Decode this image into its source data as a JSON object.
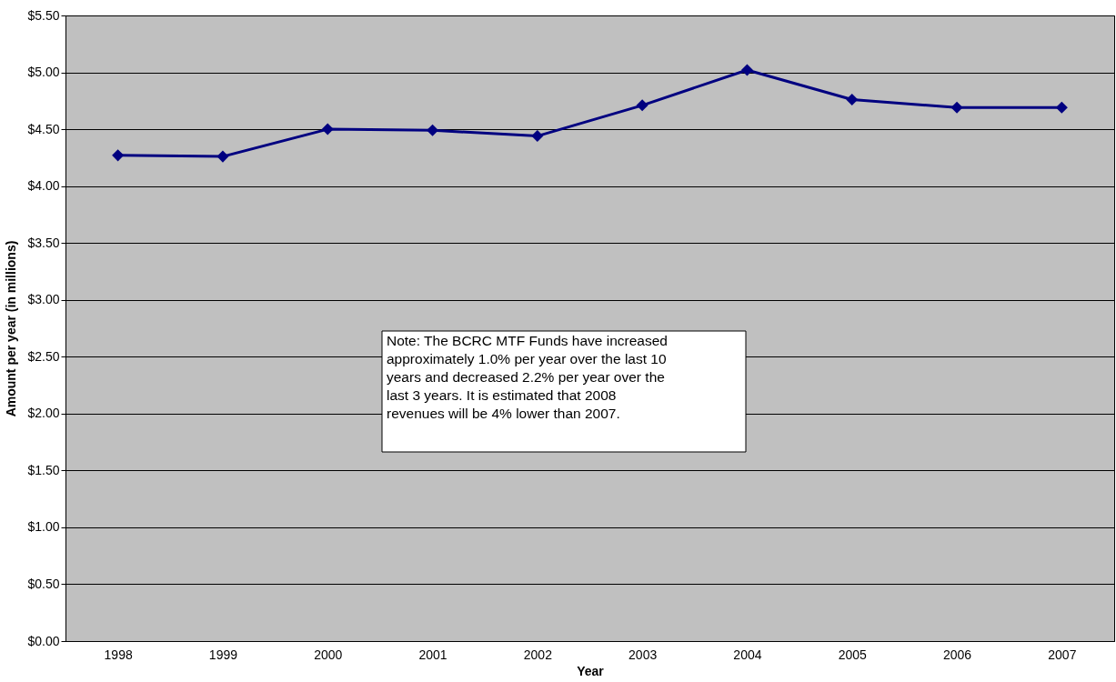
{
  "chart_data": {
    "type": "line",
    "xlabel": "Year",
    "ylabel": "Amount per year (in millions)",
    "categories": [
      "1998",
      "1999",
      "2000",
      "2001",
      "2002",
      "2003",
      "2004",
      "2005",
      "2006",
      "2007"
    ],
    "series": [
      {
        "color": "#000080",
        "values": [
          4.27,
          4.26,
          4.5,
          4.49,
          4.44,
          4.71,
          5.02,
          4.76,
          4.69,
          4.69
        ]
      }
    ],
    "ylim": [
      0,
      5.5
    ],
    "yticks": [
      {
        "value": 0,
        "label": "$0.00"
      },
      {
        "value": 0.5,
        "label": "$0.50"
      },
      {
        "value": 1,
        "label": "$1.00"
      },
      {
        "value": 1.5,
        "label": "$1.50"
      },
      {
        "value": 2,
        "label": "$2.00"
      },
      {
        "value": 2.5,
        "label": "$2.50"
      },
      {
        "value": 3,
        "label": "$3.00"
      },
      {
        "value": 3.5,
        "label": "$3.50"
      },
      {
        "value": 4,
        "label": "$4.00"
      },
      {
        "value": 4.5,
        "label": "$4.50"
      },
      {
        "value": 5,
        "label": "$5.00"
      },
      {
        "value": 5.5,
        "label": "$5.50"
      }
    ],
    "annotations": [
      "Note: The BCRC MTF Funds have increased approximately 1.0% per year over the last 10 years and decreased 2.2% per year over the last 3 years.  It is estimated that 2008 revenues will be 4% lower than 2007."
    ],
    "grid": "y",
    "marker": "diamond",
    "line_style": "solid",
    "legend": false
  }
}
